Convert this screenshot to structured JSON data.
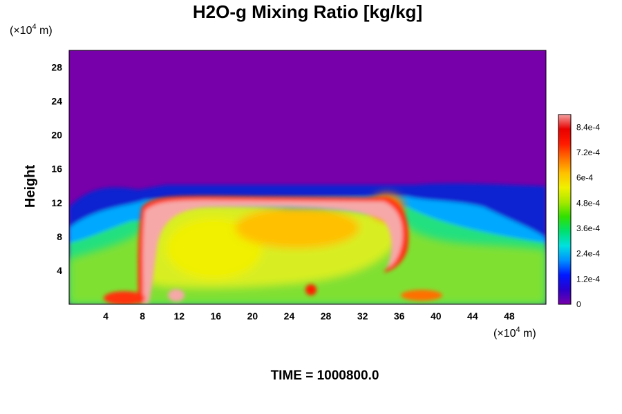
{
  "chart_data": {
    "type": "heatmap",
    "title": "H2O-g Mixing Ratio [kg/kg]",
    "ylabel": "Height",
    "xlabel": "",
    "x_unit": {
      "prefix": "(×10",
      "exp": "4",
      "suffix": " m)"
    },
    "y_unit": {
      "prefix": "(×10",
      "exp": "4",
      "suffix": " m)"
    },
    "xlim": [
      0,
      52
    ],
    "ylim": [
      0,
      30
    ],
    "x_ticks": [
      "4",
      "8",
      "12",
      "16",
      "20",
      "24",
      "28",
      "32",
      "36",
      "40",
      "44",
      "48"
    ],
    "x_tick_values": [
      4,
      8,
      12,
      16,
      20,
      24,
      28,
      32,
      36,
      40,
      44,
      48
    ],
    "y_ticks": [
      "4",
      "8",
      "12",
      "16",
      "20",
      "24",
      "28"
    ],
    "y_tick_values": [
      4,
      8,
      12,
      16,
      20,
      24,
      28
    ],
    "colorbar": {
      "min": 0,
      "max": 0.0009,
      "ticks": [
        "0",
        "1.2e-4",
        "2.4e-4",
        "3.6e-4",
        "4.8e-4",
        "6e-4",
        "7.2e-4",
        "8.4e-4"
      ],
      "tick_values": [
        0,
        0.00012,
        0.00024,
        0.00036,
        0.00048,
        0.0006,
        0.00072,
        0.00084
      ],
      "colormap": [
        "#7700aa",
        "#2a00cc",
        "#0018ff",
        "#0090ff",
        "#00e0e0",
        "#00e070",
        "#30e000",
        "#a8e800",
        "#f0f000",
        "#ffc000",
        "#ff7000",
        "#ff1a00",
        "#e80000",
        "#f4a0a0"
      ]
    },
    "field_description": {
      "upper_atmosphere_value": 0.0,
      "boundary_layer_value": 0.0005,
      "anvil_core_value": 0.0009,
      "cloud_top_height": 12.5
    },
    "footer": "TIME = 1000800.0"
  }
}
